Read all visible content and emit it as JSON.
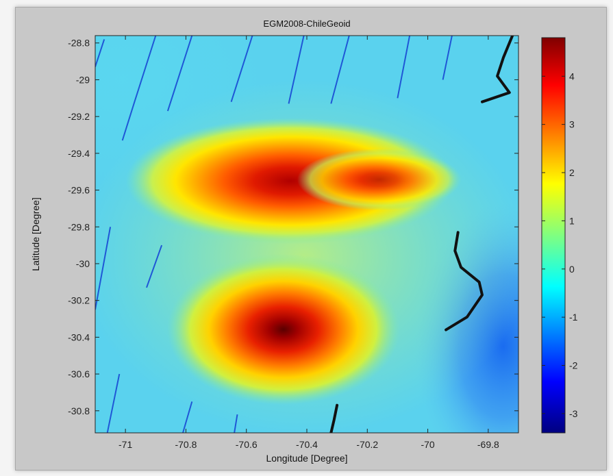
{
  "chart_data": {
    "type": "heatmap",
    "title": "EGM2008-ChileGeoid",
    "xlabel": "Longitude [Degree]",
    "ylabel": "Latitude [Degree]",
    "xlim": [
      -71.1,
      -69.7
    ],
    "ylim": [
      -30.92,
      -28.76
    ],
    "x_ticks": [
      -71,
      -70.8,
      -70.6,
      -70.4,
      -70.2,
      -70,
      -69.8
    ],
    "x_tick_labels": [
      "-71",
      "-70.8",
      "-70.6",
      "-70.4",
      "-70.2",
      "-70",
      "-69.8"
    ],
    "y_ticks": [
      -28.8,
      -29,
      -29.2,
      -29.4,
      -29.6,
      -29.8,
      -30,
      -30.2,
      -30.4,
      -30.6,
      -30.8
    ],
    "y_tick_labels": [
      "-28.8",
      "-29",
      "-29.2",
      "-29.4",
      "-29.6",
      "-29.8",
      "-30",
      "-30.2",
      "-30.4",
      "-30.6",
      "-30.8"
    ],
    "colorbar": {
      "colormap": "jet",
      "clim": [
        -3.4,
        4.8
      ],
      "ticks": [
        4,
        3,
        2,
        1,
        0,
        -1,
        -2,
        -3
      ],
      "tick_labels": [
        "4",
        "3",
        "2",
        "1",
        "0",
        "-1",
        "-2",
        "-3"
      ]
    },
    "features": [
      {
        "kind": "peak",
        "center": [
          -70.5,
          -29.55
        ],
        "peak_value": 4.6
      },
      {
        "kind": "peak",
        "center": [
          -70.5,
          -30.38
        ],
        "peak_value": 4.8
      },
      {
        "kind": "low",
        "center": [
          -69.75,
          -30.45
        ],
        "min_value": -1.8
      }
    ],
    "coastline_segments": [
      [
        [
          -69.72,
          -28.76
        ],
        [
          -69.75,
          -28.88
        ],
        [
          -69.77,
          -28.98
        ],
        [
          -69.73,
          -29.07
        ],
        [
          -69.82,
          -29.12
        ]
      ],
      [
        [
          -69.9,
          -29.83
        ],
        [
          -69.91,
          -29.93
        ],
        [
          -69.89,
          -30.02
        ],
        [
          -69.83,
          -30.1
        ],
        [
          -69.82,
          -30.17
        ],
        [
          -69.87,
          -30.29
        ],
        [
          -69.94,
          -30.36
        ]
      ],
      [
        [
          -70.3,
          -30.77
        ],
        [
          -70.31,
          -30.85
        ],
        [
          -70.32,
          -30.92
        ]
      ]
    ],
    "track_segments": [
      [
        [
          -71.07,
          -28.78
        ],
        [
          -71.1,
          -28.93
        ]
      ],
      [
        [
          -70.9,
          -28.76
        ],
        [
          -70.97,
          -29.12
        ],
        [
          -71.01,
          -29.33
        ]
      ],
      [
        [
          -70.78,
          -28.76
        ],
        [
          -70.86,
          -29.17
        ]
      ],
      [
        [
          -70.58,
          -28.76
        ],
        [
          -70.65,
          -29.12
        ]
      ],
      [
        [
          -70.41,
          -28.76
        ],
        [
          -70.46,
          -29.13
        ]
      ],
      [
        [
          -70.26,
          -28.76
        ],
        [
          -70.32,
          -29.13
        ]
      ],
      [
        [
          -70.06,
          -28.76
        ],
        [
          -70.1,
          -29.1
        ]
      ],
      [
        [
          -69.92,
          -28.76
        ],
        [
          -69.95,
          -29.0
        ]
      ],
      [
        [
          -71.05,
          -29.8
        ],
        [
          -71.1,
          -30.25
        ]
      ],
      [
        [
          -70.88,
          -29.9
        ],
        [
          -70.93,
          -30.13
        ]
      ],
      [
        [
          -71.02,
          -30.6
        ],
        [
          -71.06,
          -30.92
        ]
      ],
      [
        [
          -70.78,
          -30.75
        ],
        [
          -70.81,
          -30.92
        ]
      ],
      [
        [
          -70.63,
          -30.82
        ],
        [
          -70.64,
          -30.92
        ]
      ]
    ],
    "grid": false,
    "legend": "none"
  },
  "colors": {
    "figure_background": "#c8c8c8",
    "track_line": "#1f57d6",
    "coastline": "#111111"
  }
}
